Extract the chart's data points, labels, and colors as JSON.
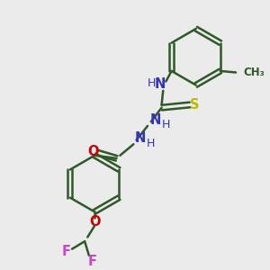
{
  "bg_color": "#ebebeb",
  "bond_color": "#2d5a27",
  "bond_width": 1.8,
  "label_fontsize": 10.5,
  "atom_colors": {
    "N": "#3333bb",
    "O": "#cc0000",
    "S": "#bbbb00",
    "F": "#cc44cc",
    "C": "#2d5a27"
  },
  "layout": {
    "xlim": [
      0,
      10
    ],
    "ylim": [
      0,
      10
    ]
  }
}
